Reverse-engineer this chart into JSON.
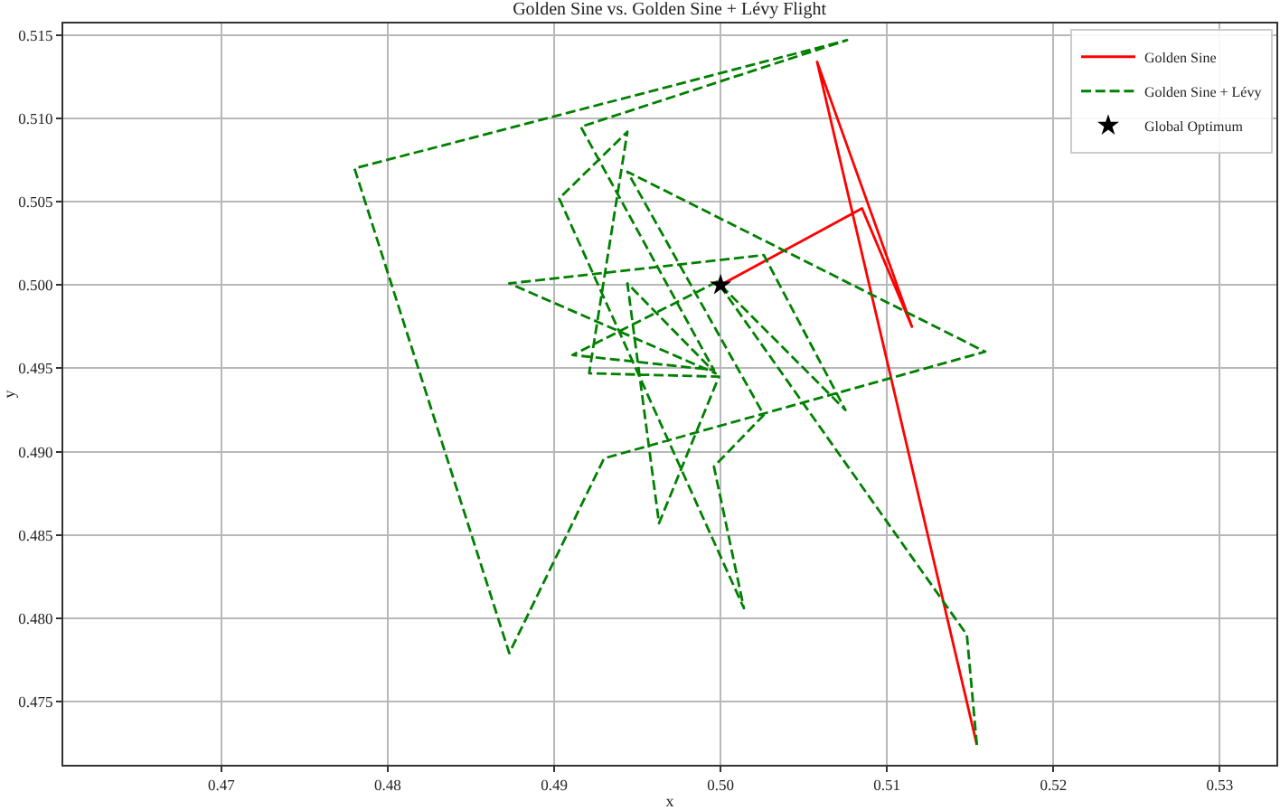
{
  "chart_data": {
    "type": "line",
    "title": "Golden Sine vs. Golden Sine + Lévy Flight",
    "xlabel": "x",
    "ylabel": "y",
    "series": [
      {
        "name": "Golden Sine",
        "color": "#ff0000",
        "line_style": "solid",
        "x": [
          0.5154,
          0.5058,
          0.5115,
          0.5085,
          0.5
        ],
        "values": [
          0.4724,
          0.5134,
          0.4975,
          0.5046,
          0.5
        ]
      },
      {
        "name": "Golden Sine + Lévy",
        "color": "#008000",
        "line_style": "dashed",
        "x": [
          0.5154,
          0.5148,
          0.4998,
          0.4911,
          0.4996,
          0.4916,
          0.5076,
          0.478,
          0.4873,
          0.493,
          0.5159,
          0.4944,
          0.5026,
          0.4996,
          0.5014,
          0.4903,
          0.4944,
          0.4921,
          0.4999,
          0.4963,
          0.4944,
          0.4997,
          0.4873,
          0.5026,
          0.5075,
          0.5
        ],
        "values": [
          0.4724,
          0.479,
          0.5002,
          0.4958,
          0.4949,
          0.5095,
          0.5147,
          0.507,
          0.4779,
          0.4896,
          0.496,
          0.5068,
          0.4922,
          0.4891,
          0.4806,
          0.5052,
          0.5092,
          0.4947,
          0.4945,
          0.4857,
          0.5001,
          0.4947,
          0.5001,
          0.5018,
          0.4925,
          0.5
        ]
      },
      {
        "name": "Global Optimum",
        "type": "scatter",
        "color": "#000000",
        "marker": "star",
        "x": [
          0.5
        ],
        "values": [
          0.5
        ]
      }
    ],
    "xlim": [
      0.4605,
      0.5334
    ],
    "ylim": [
      0.4712,
      0.5157
    ],
    "xticks": [
      0.47,
      0.48,
      0.49,
      {
        "value": 0.5,
        "label": "0.50"
      },
      0.51,
      0.52,
      0.53
    ],
    "yticks": [
      0.475,
      {
        "value": 0.48,
        "label": "0.480"
      },
      0.485,
      {
        "value": 0.49,
        "label": "0.490"
      },
      0.495,
      {
        "value": 0.5,
        "label": "0.500"
      },
      0.505,
      {
        "value": 0.51,
        "label": "0.510"
      },
      0.515
    ],
    "grid": true,
    "legend": "top right"
  }
}
